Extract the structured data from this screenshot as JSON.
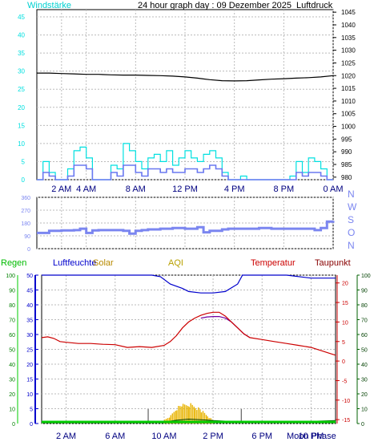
{
  "header": {
    "left_label": "Windstärke",
    "center_label": "24 hour graph day : 09 Dezember 2025",
    "right_label": "Luftdruck"
  },
  "colors": {
    "cyan": "#00e0e0",
    "wind_avg": "#6a78f0",
    "pressure": "#000000",
    "direction": "#7b86f0",
    "humidity": "#0000cc",
    "temperature": "#cc0000",
    "dewpoint": "#7000a0",
    "solar": "#e8b400",
    "aqi": "#b8a000",
    "rain": "#00cc00",
    "uv": "#004000",
    "tick_green": "#008000",
    "tick_blue": "#0000cc",
    "tick_red": "#cc0000",
    "tick_navy": "#000080"
  },
  "chart_data": [
    {
      "type": "line",
      "name": "wind-pressure",
      "x_ticks": [
        "2 AM",
        "4 AM",
        "8 AM",
        "12 PM",
        "4 PM",
        "8 PM",
        "0 AM"
      ],
      "x_tick_hours": [
        2,
        4,
        8,
        12,
        16,
        20,
        24
      ],
      "left_axis": {
        "ticks": [
          "0",
          "5",
          "10",
          "15",
          "20",
          "25",
          "30",
          "35",
          "40",
          "45"
        ],
        "ylim": [
          0,
          47
        ]
      },
      "right_axis": {
        "ticks": [
          "980",
          "985",
          "990",
          "995",
          "1000",
          "1005",
          "1010",
          "1015",
          "1020",
          "1025",
          "1030",
          "1035",
          "1040",
          "1045"
        ],
        "ylim": [
          979,
          1046
        ]
      },
      "pressure": {
        "x": [
          0,
          1,
          2,
          3,
          4,
          5,
          6,
          7,
          8,
          9,
          10,
          11,
          12,
          13,
          14,
          15,
          16,
          17,
          18,
          19,
          20,
          21,
          22,
          23,
          24
        ],
        "y": [
          1021,
          1021,
          1020.8,
          1020.7,
          1020.5,
          1020.5,
          1020.3,
          1020.2,
          1020.2,
          1020.1,
          1020,
          1019.8,
          1019.5,
          1019,
          1018.4,
          1018,
          1017.9,
          1018,
          1018.3,
          1018.6,
          1018.8,
          1019,
          1019.2,
          1019.5,
          1020
        ]
      },
      "wind_gust": {
        "x": [
          0,
          0.5,
          1,
          1.5,
          2,
          2.5,
          3,
          3.5,
          4,
          4.5,
          5,
          5.5,
          6,
          6.5,
          7,
          7.5,
          8,
          8.5,
          9,
          9.5,
          10,
          10.5,
          11,
          11.5,
          12,
          12.5,
          13,
          13.5,
          14,
          14.5,
          15,
          15.5,
          16,
          16.5,
          17,
          17.5,
          18,
          18.5,
          19,
          19.5,
          20,
          20.5,
          21,
          21.5,
          22,
          22.5,
          23,
          23.5,
          24
        ],
        "y": [
          0,
          5,
          2,
          0,
          0,
          3,
          8,
          9,
          6,
          0,
          0,
          0,
          4,
          3,
          10,
          8,
          5,
          3,
          6,
          7,
          5,
          8,
          4,
          6,
          8,
          6,
          5,
          7,
          8,
          6,
          2,
          0,
          0,
          1,
          0,
          0,
          0,
          0,
          0,
          0,
          0,
          1,
          5,
          2,
          6,
          5,
          3,
          0,
          0
        ]
      },
      "wind_avg": {
        "x": [
          0,
          0.5,
          1,
          1.5,
          2,
          2.5,
          3,
          3.5,
          4,
          4.5,
          5,
          5.5,
          6,
          6.5,
          7,
          7.5,
          8,
          8.5,
          9,
          9.5,
          10,
          10.5,
          11,
          11.5,
          12,
          12.5,
          13,
          13.5,
          14,
          14.5,
          15,
          15.5,
          16,
          16.5,
          17,
          17.5,
          18,
          18.5,
          19,
          19.5,
          20,
          20.5,
          21,
          21.5,
          22,
          22.5,
          23,
          23.5,
          24
        ],
        "y": [
          0,
          2,
          1,
          0,
          0,
          1,
          4,
          4,
          3,
          0,
          0,
          0,
          2,
          1,
          4,
          4,
          2,
          1,
          3,
          3,
          2,
          3,
          2,
          2,
          3,
          3,
          2,
          3,
          4,
          3,
          1,
          0,
          0,
          0,
          0,
          0,
          0,
          0,
          0,
          0,
          0,
          0,
          2,
          1,
          2,
          2,
          1,
          0,
          0
        ]
      }
    },
    {
      "type": "line",
      "name": "wind-direction",
      "left_axis": {
        "ticks": [
          "0",
          "90",
          "180",
          "270",
          "360"
        ],
        "ylim": [
          0,
          360
        ]
      },
      "compass": [
        "N",
        "W",
        "S",
        "O",
        "N"
      ],
      "direction": {
        "x": [
          0,
          1,
          2,
          3,
          3.5,
          4,
          4.5,
          5,
          6,
          7,
          7.5,
          8,
          8.5,
          9,
          10,
          11,
          12,
          13,
          13.5,
          14,
          15,
          15.5,
          16,
          17,
          18,
          19,
          20,
          21,
          22,
          22.5,
          23,
          23.5,
          24
        ],
        "y": [
          110,
          125,
          128,
          130,
          140,
          110,
          128,
          130,
          130,
          125,
          105,
          125,
          130,
          135,
          140,
          145,
          140,
          150,
          115,
          125,
          135,
          140,
          140,
          140,
          145,
          140,
          140,
          140,
          140,
          130,
          145,
          190,
          195
        ]
      }
    },
    {
      "type": "line",
      "name": "weather",
      "legend": [
        "Regen",
        "Luftfeuchte",
        "Solar",
        "AQI",
        "Temperatur",
        "Taupunkt"
      ],
      "x_ticks": [
        "2 AM",
        "6 AM",
        "10 AM",
        "2 PM",
        "6 PM",
        "10 PM"
      ],
      "x_tick_hours": [
        2,
        6,
        10,
        14,
        18,
        22
      ],
      "bottom_right_label": "Moon Phase",
      "rain_axis": {
        "ticks": [
          "0",
          "10",
          "20",
          "30",
          "40",
          "50",
          "60",
          "70",
          "80",
          "90",
          "100"
        ]
      },
      "humidity_axis": {
        "ticks": [
          "0",
          "5",
          "10",
          "15",
          "20",
          "25",
          "30",
          "35",
          "40",
          "45",
          "50"
        ]
      },
      "temperature_axis": {
        "ticks": [
          "-15",
          "-10",
          "-5",
          "0",
          "5",
          "10",
          "15",
          "20"
        ],
        "ylim": [
          -16,
          22
        ]
      },
      "right_axis": {
        "ticks": [
          "0",
          "10",
          "20",
          "30",
          "40",
          "50",
          "60",
          "70",
          "80",
          "90",
          "100"
        ]
      },
      "humidity": {
        "x": [
          0,
          9,
          9.7,
          10.5,
          11.5,
          12,
          13,
          14,
          15,
          16,
          16.4,
          20,
          22,
          24
        ],
        "y": [
          100,
          100,
          99,
          94,
          91,
          89,
          88,
          88,
          89,
          94,
          100,
          100,
          98,
          98
        ]
      },
      "temperature": {
        "x": [
          0,
          0.5,
          1,
          1.5,
          2,
          3,
          4,
          5,
          6,
          7,
          8,
          9,
          10,
          10.5,
          11,
          11.5,
          12,
          12.5,
          13,
          13.5,
          14,
          14.5,
          15,
          15.5,
          16,
          16.5,
          17,
          18,
          19,
          20,
          21,
          22,
          23,
          23.5,
          24
        ],
        "y": [
          6,
          6.2,
          5.8,
          5,
          4.8,
          4.5,
          4.5,
          4.3,
          4.2,
          3.5,
          3.7,
          3.5,
          4,
          5,
          6.5,
          8.5,
          10,
          11,
          11.7,
          12.2,
          12.5,
          12.5,
          11.5,
          10,
          8.5,
          7,
          6,
          5.5,
          5,
          4.5,
          4,
          3.5,
          2.5,
          2,
          1.5
        ]
      },
      "dewpoint": {
        "x": [
          13,
          13.5,
          14,
          14.5,
          15,
          15.5,
          16,
          16.5,
          17
        ],
        "y": [
          11,
          11.3,
          11.4,
          11.4,
          11,
          10,
          8.5,
          7,
          6
        ]
      },
      "solar": {
        "x": [
          10,
          10.5,
          11,
          11.5,
          12,
          12.5,
          13,
          13.5,
          14
        ],
        "y": [
          3,
          6,
          12,
          14,
          15,
          13,
          10,
          6,
          2
        ]
      },
      "uv": {
        "x": [
          0,
          6,
          7,
          8,
          9,
          10,
          11,
          12,
          13,
          14,
          16,
          18,
          20,
          22,
          24
        ],
        "y": [
          0.5,
          0.5,
          0.5,
          0.5,
          0.5,
          1,
          2.2,
          3,
          2.6,
          2,
          1.2,
          0.7,
          1,
          1.5,
          2
        ]
      }
    }
  ]
}
